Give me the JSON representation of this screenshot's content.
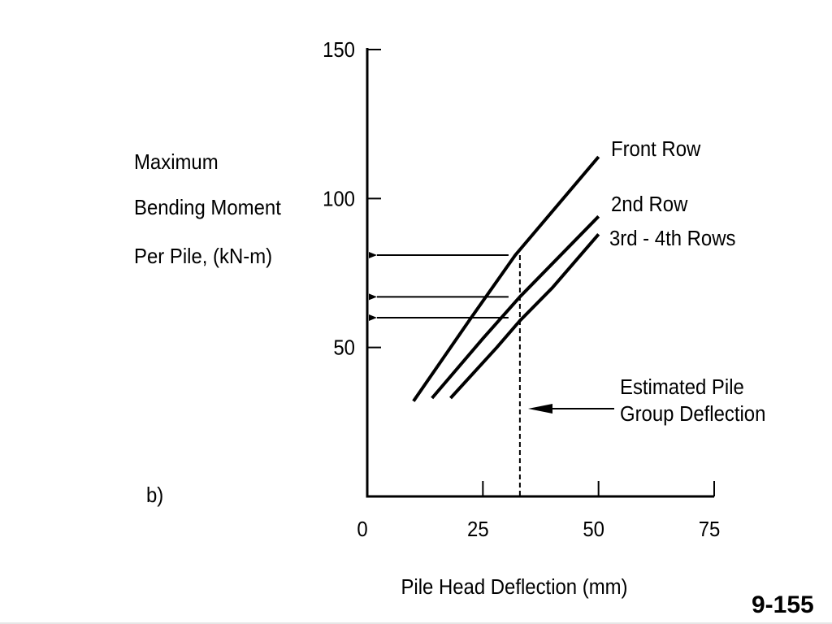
{
  "chart_data": {
    "type": "line",
    "xlabel": "Pile Head Deflection (mm)",
    "ylabel_lines": [
      "Maximum",
      "Bending Moment",
      "Per Pile, (kN-m)"
    ],
    "xlim": [
      0,
      75
    ],
    "ylim": [
      0,
      150
    ],
    "x_ticks": [
      0,
      25,
      50,
      75
    ],
    "x_tick_labels": [
      "0",
      "25",
      "50",
      "75"
    ],
    "y_ticks": [
      50,
      100,
      150
    ],
    "y_tick_labels": [
      "50",
      "100",
      "150"
    ],
    "grid": false,
    "series": [
      {
        "name": "Front Row",
        "x": [
          10,
          22,
          32,
          50
        ],
        "y": [
          32,
          59,
          81,
          114
        ]
      },
      {
        "name": "2nd Row",
        "x": [
          14,
          25,
          33,
          50
        ],
        "y": [
          33,
          53,
          67,
          94
        ]
      },
      {
        "name": "3rd - 4th Rows",
        "x": [
          18,
          28,
          33,
          40,
          50
        ],
        "y": [
          33,
          50,
          59,
          70,
          88
        ]
      }
    ],
    "estimated_deflection_x": 33,
    "read_arrow_values": [
      81,
      67,
      60
    ],
    "annotation": [
      "Estimated Pile",
      "Group Deflection"
    ]
  },
  "panel_label": "b)",
  "page_number": "9-155"
}
